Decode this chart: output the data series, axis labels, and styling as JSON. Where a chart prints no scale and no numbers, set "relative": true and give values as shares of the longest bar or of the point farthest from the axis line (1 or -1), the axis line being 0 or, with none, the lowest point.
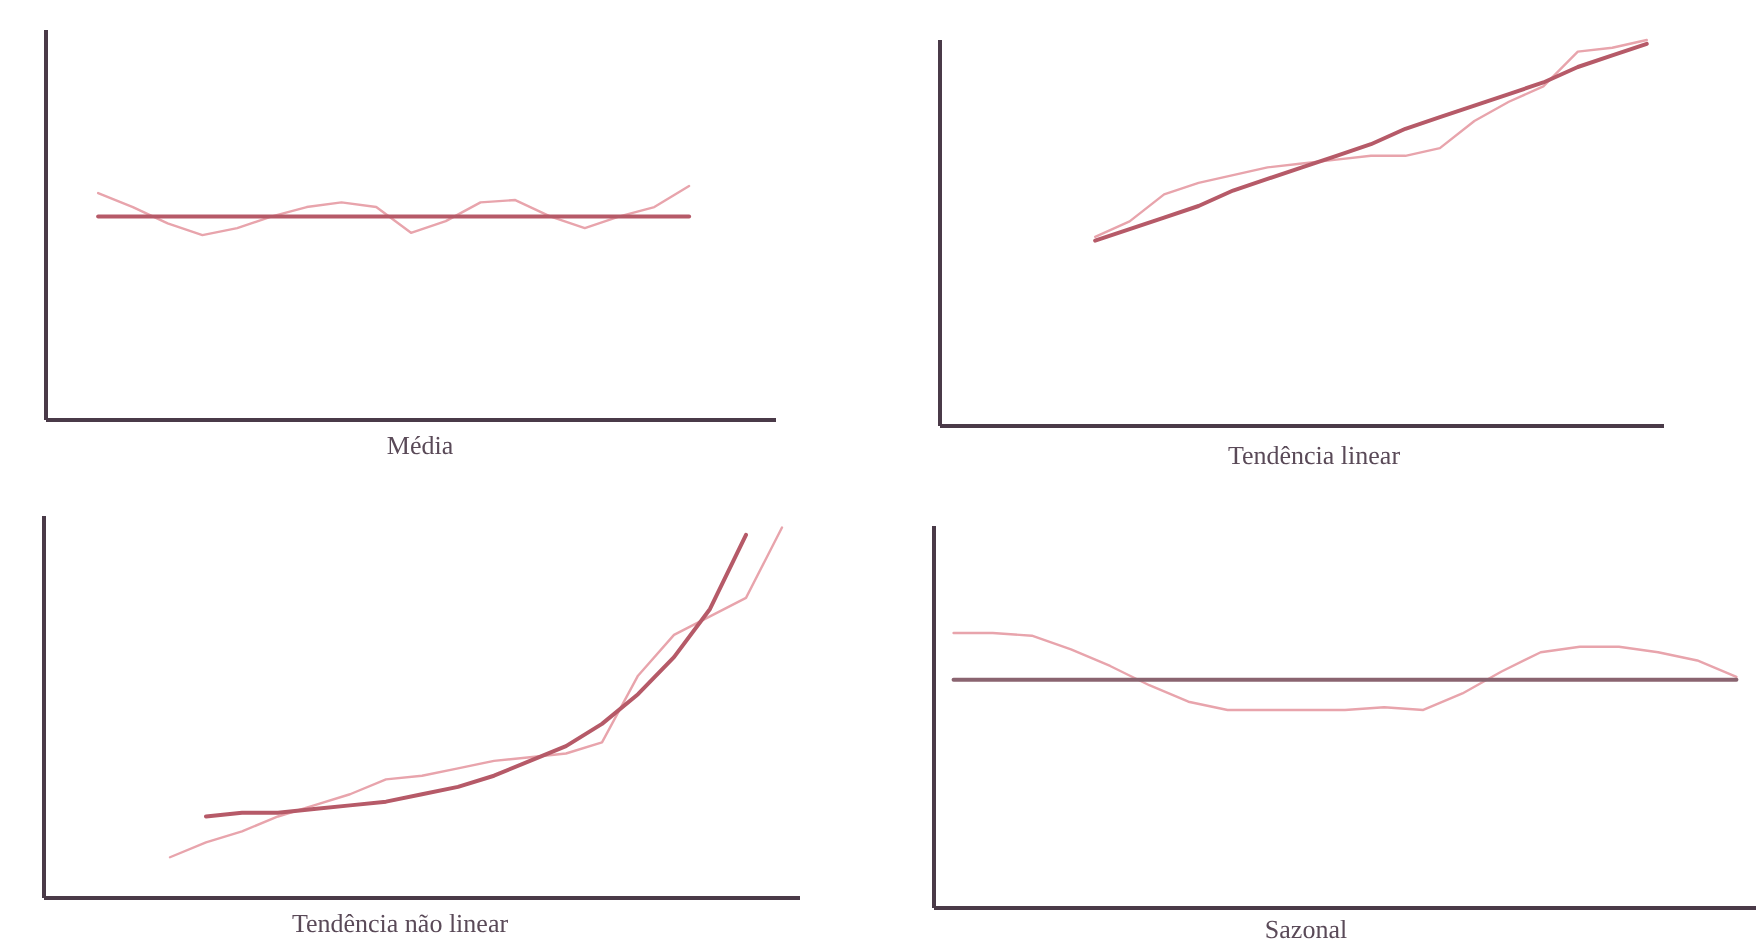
{
  "chart_data": [
    {
      "type": "line",
      "xlabel": "Média",
      "relative": true,
      "categories": [
        null,
        null,
        null,
        null,
        null,
        null,
        null,
        null,
        null,
        null,
        null,
        null,
        null,
        null,
        null,
        null,
        null,
        null,
        null,
        null,
        null
      ],
      "series": [
        {
          "color": "#e8a4ac",
          "values": [
            null,
            0.97,
            0.91,
            0.84,
            0.79,
            0.82,
            0.87,
            0.91,
            0.93,
            0.91,
            0.8,
            0.85,
            0.93,
            0.94,
            0.87,
            0.82,
            0.87,
            0.91,
            1,
            null,
            null
          ]
        },
        {
          "color": "#b65a68",
          "values": [
            null,
            0.87,
            0.87,
            0.87,
            0.87,
            0.87,
            0.87,
            0.87,
            0.87,
            0.87,
            0.87,
            0.87,
            0.87,
            0.87,
            0.87,
            0.87,
            0.87,
            0.87,
            0.87,
            null,
            null
          ]
        }
      ]
    },
    {
      "type": "line",
      "xlabel": "Tendência linear",
      "relative": true,
      "categories": [
        null,
        null,
        null,
        null,
        null,
        null,
        null,
        null,
        null,
        null,
        null,
        null,
        null,
        null,
        null,
        null,
        null,
        null,
        null,
        null,
        null
      ],
      "series": [
        {
          "color": "#e8a4ac",
          "values": [
            null,
            null,
            null,
            null,
            0.49,
            0.53,
            0.6,
            0.63,
            0.65,
            0.67,
            0.68,
            0.69,
            0.7,
            0.7,
            0.72,
            0.79,
            0.84,
            0.88,
            0.97,
            0.98,
            1
          ]
        },
        {
          "color": "#b65a68",
          "values": [
            null,
            null,
            null,
            null,
            0.48,
            0.51,
            0.54,
            0.57,
            0.61,
            0.64,
            0.67,
            0.7,
            0.73,
            0.77,
            0.8,
            0.83,
            0.86,
            0.89,
            0.93,
            0.96,
            0.99
          ]
        }
      ]
    },
    {
      "type": "line",
      "xlabel": "Tendência não linear",
      "relative": true,
      "categories": [
        null,
        null,
        null,
        null,
        null,
        null,
        null,
        null,
        null,
        null,
        null,
        null,
        null,
        null,
        null,
        null,
        null,
        null,
        null,
        null,
        null
      ],
      "series": [
        {
          "color": "#e8a4ac",
          "values": [
            null,
            null,
            null,
            0.11,
            0.15,
            0.18,
            0.22,
            0.25,
            0.28,
            0.32,
            0.33,
            0.35,
            0.37,
            0.38,
            0.39,
            0.42,
            0.6,
            0.71,
            0.76,
            0.81,
            1
          ]
        },
        {
          "color": "#b65a68",
          "values": [
            null,
            null,
            null,
            null,
            0.22,
            0.23,
            0.23,
            0.24,
            0.25,
            0.26,
            0.28,
            0.3,
            0.33,
            0.37,
            0.41,
            0.47,
            0.55,
            0.65,
            0.78,
            0.98,
            null
          ]
        }
      ]
    },
    {
      "type": "line",
      "xlabel": "Sazonal",
      "relative": true,
      "categories": [
        null,
        null,
        null,
        null,
        null,
        null,
        null,
        null,
        null,
        null,
        null,
        null,
        null,
        null,
        null,
        null,
        null,
        null,
        null,
        null,
        null
      ],
      "series": [
        {
          "color": "#e8a4ac",
          "values": [
            1,
            1,
            0.99,
            0.94,
            0.88,
            0.81,
            0.75,
            0.72,
            0.72,
            0.72,
            0.72,
            0.73,
            0.72,
            0.78,
            0.86,
            0.93,
            0.95,
            0.95,
            0.93,
            0.9,
            0.84
          ]
        },
        {
          "color": "#8a6470",
          "values": [
            0.83,
            0.83,
            0.83,
            0.83,
            0.83,
            0.83,
            0.83,
            0.83,
            0.83,
            0.83,
            0.83,
            0.83,
            0.83,
            0.83,
            0.83,
            0.83,
            0.83,
            0.83,
            0.83,
            0.83,
            0.83
          ]
        }
      ]
    }
  ]
}
